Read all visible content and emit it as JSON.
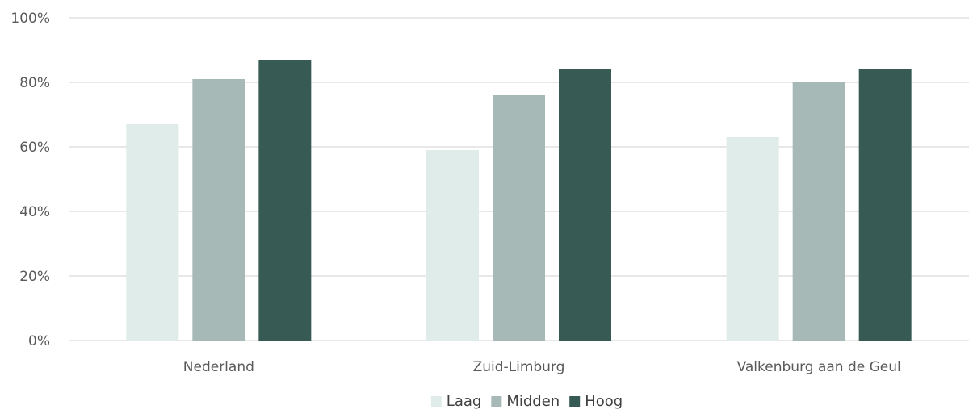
{
  "chart_data": {
    "type": "bar",
    "title": "",
    "xlabel": "",
    "ylabel": "",
    "categories": [
      "Nederland",
      "Zuid-Limburg",
      "Valkenburg aan de Geul"
    ],
    "series": [
      {
        "name": "Laag",
        "values": [
          67,
          59,
          63
        ],
        "color": "#e0ece9"
      },
      {
        "name": "Midden",
        "values": [
          81,
          76,
          80
        ],
        "color": "#a6b9b6"
      },
      {
        "name": "Hoog",
        "values": [
          87,
          84,
          84
        ],
        "color": "#375b54"
      }
    ],
    "ylim": [
      0,
      100
    ],
    "yticks": [
      0,
      20,
      40,
      60,
      80,
      100
    ],
    "ytick_labels": [
      "0%",
      "20%",
      "40%",
      "60%",
      "80%",
      "100%"
    ],
    "grid": true,
    "legend_position": "bottom"
  }
}
